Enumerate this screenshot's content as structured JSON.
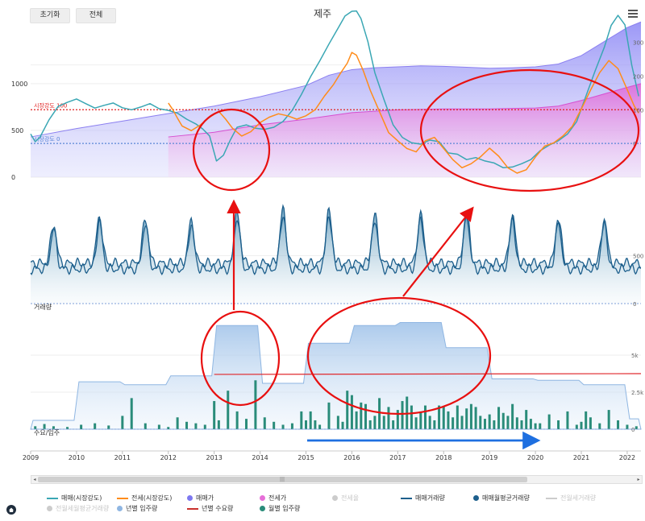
{
  "toolbar": {
    "reset_label": "초기화",
    "all_label": "전체"
  },
  "chart_title": "제주",
  "colors": {
    "sale_strength": "#3aa7b4",
    "jeonse_strength": "#ff8c1a",
    "sale_price_fill": "#7d78f0",
    "jeonse_price_fill": "#e66fd8",
    "volume": "#1d5f8c",
    "supply_area": "#a9c8ea",
    "demand_line": "#e0282c",
    "monthly_supply": "#2a8c7a",
    "annotation": "#e81010",
    "arrow_blue": "#1e6fe0"
  },
  "chart_data": [
    {
      "type": "line",
      "title": "",
      "x_range": [
        2009,
        2022.3
      ],
      "left_axis": {
        "ticks": [
          0,
          500,
          1000
        ],
        "range": [
          0,
          1550
        ]
      },
      "right_axis": {
        "ticks": [
          0,
          100,
          200,
          300
        ],
        "range": [
          -100,
          330
        ]
      },
      "reference_lines": [
        {
          "label": "시장강도 100",
          "value": 100,
          "color": "#e02020"
        },
        {
          "label": "시장강도 0",
          "value": 0,
          "color": "#5a86d6"
        }
      ],
      "series": [
        {
          "name": "매매(시장강도)",
          "axis": "right",
          "x": [
            2009,
            2009.1,
            2009.2,
            2009.4,
            2009.6,
            2009.8,
            2010,
            2010.2,
            2010.4,
            2010.6,
            2010.8,
            2011,
            2011.2,
            2011.4,
            2011.6,
            2011.8,
            2012,
            2012.2,
            2012.4,
            2012.6,
            2012.75,
            2012.9,
            2013.05,
            2013.2,
            2013.35,
            2013.5,
            2013.7,
            2013.9,
            2014.1,
            2014.3,
            2014.5,
            2014.7,
            2014.9,
            2015.1,
            2015.3,
            2015.5,
            2015.7,
            2015.85,
            2016,
            2016.1,
            2016.2,
            2016.35,
            2016.5,
            2016.7,
            2016.9,
            2017.1,
            2017.3,
            2017.5,
            2017.7,
            2017.9,
            2018.1,
            2018.3,
            2018.5,
            2018.7,
            2018.9,
            2019.1,
            2019.3,
            2019.5,
            2019.7,
            2019.9,
            2020.1,
            2020.3,
            2020.5,
            2020.7,
            2020.9,
            2021.1,
            2021.3,
            2021.5,
            2021.65,
            2021.8,
            2021.95,
            2022.1,
            2022.25
          ],
          "y": [
            28,
            5,
            18,
            70,
            110,
            122,
            132,
            118,
            105,
            113,
            120,
            106,
            100,
            108,
            118,
            103,
            98,
            90,
            72,
            58,
            43,
            22,
            -52,
            -35,
            10,
            48,
            55,
            45,
            42,
            48,
            65,
            98,
            145,
            198,
            245,
            295,
            342,
            378,
            392,
            393,
            370,
            302,
            210,
            130,
            55,
            18,
            2,
            -2,
            10,
            5,
            -28,
            -32,
            -48,
            -42,
            -52,
            -58,
            -72,
            -70,
            -60,
            -48,
            -22,
            -5,
            8,
            28,
            65,
            140,
            215,
            285,
            350,
            380,
            352,
            232,
            140
          ]
        },
        {
          "name": "전세(시장강도)",
          "axis": "right",
          "x": [
            2012,
            2012.1,
            2012.2,
            2012.3,
            2012.5,
            2012.7,
            2012.9,
            2013.1,
            2013.25,
            2013.4,
            2013.6,
            2013.8,
            2014,
            2014.2,
            2014.4,
            2014.6,
            2014.8,
            2015,
            2015.2,
            2015.4,
            2015.6,
            2015.75,
            2015.9,
            2016,
            2016.1,
            2016.25,
            2016.4,
            2016.6,
            2016.8,
            2017,
            2017.2,
            2017.4,
            2017.6,
            2017.8,
            2018,
            2018.2,
            2018.4,
            2018.6,
            2018.8,
            2019,
            2019.2,
            2019.4,
            2019.6,
            2019.8,
            2020,
            2020.2,
            2020.4,
            2020.6,
            2020.8,
            2021,
            2021.2,
            2021.4,
            2021.6,
            2021.8,
            2022,
            2022.15,
            2022.25
          ],
          "y": [
            120,
            100,
            75,
            52,
            38,
            55,
            78,
            95,
            72,
            45,
            22,
            35,
            62,
            78,
            88,
            82,
            72,
            82,
            100,
            140,
            175,
            208,
            238,
            270,
            262,
            215,
            158,
            95,
            32,
            8,
            -15,
            -25,
            8,
            18,
            -15,
            -48,
            -72,
            -60,
            -40,
            -14,
            -38,
            -72,
            -88,
            -78,
            -40,
            -8,
            2,
            22,
            50,
            102,
            158,
            210,
            246,
            222,
            160,
            112,
            90
          ]
        }
      ],
      "areas": [
        {
          "name": "매매가",
          "axis": "left",
          "x": [
            2009,
            2010,
            2011,
            2012,
            2013,
            2014,
            2015,
            2015.5,
            2016,
            2016.5,
            2017,
            2017.5,
            2018,
            2018.5,
            2019,
            2019.5,
            2020,
            2020.5,
            2021,
            2021.5,
            2022,
            2022.3
          ],
          "y": [
            430,
            520,
            600,
            680,
            760,
            860,
            980,
            1090,
            1150,
            1170,
            1180,
            1190,
            1185,
            1175,
            1165,
            1170,
            1180,
            1210,
            1300,
            1450,
            1600,
            1660
          ]
        },
        {
          "name": "전세가",
          "axis": "left",
          "x": [
            2012,
            2013,
            2014,
            2015,
            2016,
            2017,
            2018,
            2019,
            2020,
            2020.5,
            2021,
            2021.5,
            2022,
            2022.3
          ],
          "y": [
            430,
            480,
            560,
            620,
            690,
            720,
            730,
            730,
            740,
            760,
            820,
            890,
            960,
            1000
          ]
        }
      ]
    },
    {
      "type": "line",
      "title": "",
      "ylabel": "거래량",
      "right_axis": {
        "ticks": [
          0,
          500
        ]
      },
      "y_range": [
        0,
        1150
      ],
      "series": [
        {
          "name": "매매거래량",
          "peak_years": [
            2009.5,
            2010.5,
            2011.5,
            2012.5,
            2013.5,
            2014.5,
            2015.5,
            2016.5,
            2017.5,
            2018.5,
            2019.5,
            2020.5,
            2021.5
          ],
          "peak_values": [
            820,
            900,
            880,
            860,
            950,
            980,
            960,
            920,
            930,
            950,
            910,
            880,
            870
          ],
          "trough_value": 420
        },
        {
          "name": "매매월평균거래량",
          "peak_years": [
            2009.5,
            2010.5,
            2011.5,
            2012.5,
            2013.5,
            2014.5,
            2015.5,
            2016.5,
            2017.5,
            2018.5,
            2019.5,
            2020.5,
            2021.5
          ],
          "peak_values": [
            780,
            860,
            830,
            820,
            900,
            930,
            930,
            880,
            900,
            920,
            880,
            850,
            840
          ],
          "trough_value": 360
        }
      ]
    },
    {
      "type": "bar",
      "title": "",
      "ylabel": "수요/입주",
      "right_axis": {
        "ticks": [
          "0",
          "2.5k",
          "5k"
        ],
        "range": [
          0,
          7500
        ]
      },
      "series": [
        {
          "name": "년별 입주량",
          "type": "step-area",
          "x": [
            2009,
            2010,
            2011,
            2012,
            2013,
            2014,
            2015,
            2016,
            2017,
            2018,
            2019,
            2020,
            2021,
            2022,
            2022.3
          ],
          "y": [
            600,
            3200,
            3000,
            3600,
            7000,
            3100,
            5800,
            7000,
            7200,
            5500,
            3400,
            3300,
            3000,
            700,
            100
          ]
        },
        {
          "name": "년별 수요량",
          "type": "line",
          "x": [
            2013,
            2022.3
          ],
          "y": [
            3700,
            3750
          ]
        },
        {
          "name": "월별 입주량",
          "type": "bar",
          "x": [
            2009.1,
            2009.3,
            2009.5,
            2009.8,
            2010.1,
            2010.4,
            2010.7,
            2011.0,
            2011.2,
            2011.5,
            2011.8,
            2012.0,
            2012.2,
            2012.4,
            2012.6,
            2012.8,
            2013.0,
            2013.1,
            2013.3,
            2013.5,
            2013.7,
            2013.9,
            2014.1,
            2014.3,
            2014.5,
            2014.7,
            2014.9,
            2015.0,
            2015.1,
            2015.2,
            2015.3,
            2015.5,
            2015.7,
            2015.8,
            2015.9,
            2016.0,
            2016.1,
            2016.2,
            2016.3,
            2016.4,
            2016.5,
            2016.6,
            2016.7,
            2016.8,
            2016.9,
            2017.0,
            2017.1,
            2017.2,
            2017.3,
            2017.4,
            2017.5,
            2017.6,
            2017.7,
            2017.8,
            2017.9,
            2018.0,
            2018.1,
            2018.2,
            2018.3,
            2018.4,
            2018.5,
            2018.6,
            2018.7,
            2018.8,
            2018.9,
            2019.0,
            2019.1,
            2019.2,
            2019.3,
            2019.4,
            2019.5,
            2019.6,
            2019.7,
            2019.8,
            2019.9,
            2020.0,
            2020.1,
            2020.3,
            2020.5,
            2020.7,
            2020.9,
            2021.0,
            2021.1,
            2021.2,
            2021.4,
            2021.6,
            2021.8,
            2022.0,
            2022.2
          ],
          "y": [
            200,
            350,
            200,
            150,
            300,
            400,
            250,
            900,
            2100,
            400,
            300,
            150,
            800,
            500,
            400,
            300,
            1900,
            600,
            2600,
            1200,
            700,
            3300,
            800,
            500,
            300,
            400,
            1200,
            600,
            1200,
            600,
            300,
            1800,
            900,
            500,
            2600,
            2300,
            1200,
            1800,
            1700,
            600,
            900,
            2100,
            900,
            1500,
            600,
            1300,
            1900,
            2200,
            1600,
            800,
            1200,
            1600,
            900,
            600,
            1600,
            1500,
            1200,
            800,
            1600,
            900,
            1400,
            1700,
            1500,
            900,
            700,
            1000,
            600,
            1500,
            1100,
            900,
            1700,
            800,
            600,
            1300,
            700,
            400,
            400,
            1000,
            600,
            1200,
            300,
            500,
            1200,
            800,
            400,
            1300,
            600,
            300,
            200
          ]
        }
      ]
    }
  ],
  "x_axis": {
    "ticks": [
      "2009",
      "2010",
      "2011",
      "2012",
      "2013",
      "2014",
      "2015",
      "2016",
      "2017",
      "2018",
      "2019",
      "2020",
      "2021",
      "2022"
    ]
  },
  "legend": [
    {
      "label": "매매(시장강도)",
      "marker": "line",
      "color": "#3aa7b4",
      "visible": true
    },
    {
      "label": "전세(시장강도)",
      "marker": "line",
      "color": "#ff8c1a",
      "visible": true
    },
    {
      "label": "매매가",
      "marker": "dot",
      "color": "#7d78f0",
      "visible": true
    },
    {
      "label": "전세가",
      "marker": "dot",
      "color": "#e66fd8",
      "visible": true
    },
    {
      "label": "전세율",
      "marker": "dot",
      "color": "#cccccc",
      "visible": false
    },
    {
      "label": "매매거래량",
      "marker": "line",
      "color": "#1d5f8c",
      "visible": true
    },
    {
      "label": "매매월평균거래량",
      "marker": "dot",
      "color": "#1d5f8c",
      "visible": true
    },
    {
      "label": "전월세거래량",
      "marker": "line",
      "color": "#cccccc",
      "visible": false
    },
    {
      "label": "전월세월평균거래량",
      "marker": "dot",
      "color": "#cccccc",
      "visible": false
    },
    {
      "label": "년별 입주량",
      "marker": "dot",
      "color": "#8fb6e2",
      "visible": true
    },
    {
      "label": "년별 수요량",
      "marker": "line",
      "color": "#c9302c",
      "visible": true
    },
    {
      "label": "월별 입주량",
      "marker": "dot",
      "color": "#2a8c7a",
      "visible": true
    }
  ]
}
